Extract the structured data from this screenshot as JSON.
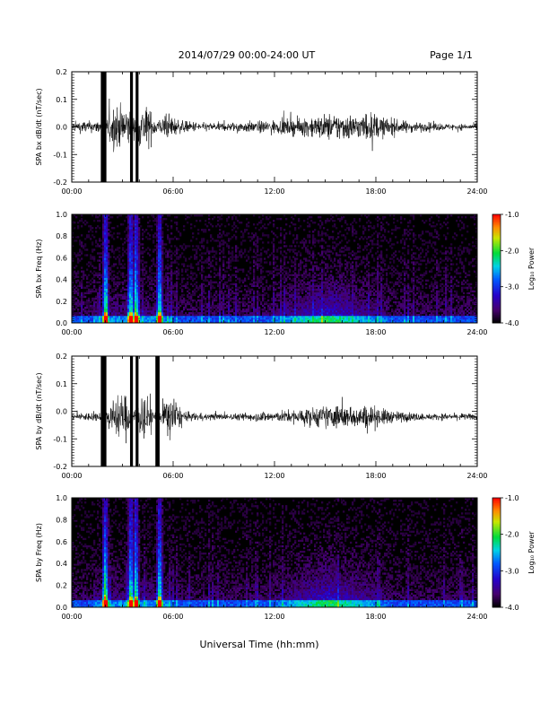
{
  "header": {
    "title": "2014/07/29  00:00-24:00 UT",
    "page": "Page 1/1"
  },
  "xlabel": "Universal Time (hh:mm)",
  "colorbar": {
    "label": "Log₁₀ Power",
    "ticks": [
      "-1.0",
      "-2.0",
      "-3.0",
      "-4.0"
    ],
    "range": [
      -4.0,
      -1.0
    ]
  },
  "chart_data": [
    {
      "type": "line",
      "ylabel": "SPA bx dB/dt (nT/sec)",
      "ylim": [
        -0.2,
        0.2
      ],
      "yticks": [
        "0.2",
        "0.1",
        "0.0",
        "-0.1",
        "-0.2"
      ],
      "xticks": [
        "00:00",
        "06:00",
        "12:00",
        "18:00",
        "24:00"
      ],
      "xlim_hours": [
        0,
        24
      ],
      "series": [
        {
          "values": [
            0.04,
            0.05,
            0.06,
            0.05,
            0.06,
            0.06,
            0.2,
            0.2,
            0.2,
            0.08,
            0.2,
            0.2,
            0.09,
            0.08,
            0.12,
            0.08,
            0.06,
            0.05,
            0.05,
            0.04,
            0.04,
            0.04,
            0.04,
            0.04,
            0.05,
            0.05,
            0.05,
            0.05,
            0.06,
            0.06,
            0.06,
            0.07,
            0.07,
            0.08,
            0.09,
            0.1,
            0.11,
            0.12,
            0.12,
            0.13,
            0.12,
            0.11,
            0.12,
            0.13,
            0.12,
            0.1,
            0.08,
            0.07,
            0.06,
            0.05,
            0.05,
            0.04,
            0.04,
            0.04,
            0.03,
            0.03,
            0.03,
            0.03,
            0.03,
            0.03
          ]
        }
      ]
    },
    {
      "type": "heatmap",
      "ylabel": "SPA bx Freq (Hz)",
      "ylim": [
        0.0,
        1.0
      ],
      "yticks": [
        "1.0",
        "0.8",
        "0.6",
        "0.4",
        "0.2",
        "0.0"
      ],
      "xticks": [
        "00:00",
        "06:00",
        "12:00",
        "18:00",
        "24:00"
      ],
      "xlim_hours": [
        0,
        24
      ],
      "zlim": [
        -4.0,
        -1.0
      ],
      "broadband_bursts_hours": [
        2.0,
        3.5,
        3.8,
        5.2
      ],
      "activity_window_hours": [
        11.5,
        19.0
      ]
    },
    {
      "type": "line",
      "ylabel": "SPA by dB/dt (nT/sec)",
      "ylim": [
        -0.2,
        0.2
      ],
      "yticks": [
        "0.2",
        "0.1",
        "0.0",
        "-0.1",
        "-0.2"
      ],
      "xticks": [
        "00:00",
        "06:00",
        "12:00",
        "18:00",
        "24:00"
      ],
      "xlim_hours": [
        0,
        24
      ],
      "series": [
        {
          "values": [
            0.03,
            0.03,
            0.04,
            0.04,
            0.04,
            0.04,
            0.2,
            0.2,
            0.2,
            0.06,
            0.2,
            0.2,
            0.07,
            0.06,
            0.2,
            0.2,
            0.05,
            0.04,
            0.04,
            0.03,
            0.03,
            0.03,
            0.03,
            0.03,
            0.03,
            0.04,
            0.04,
            0.04,
            0.05,
            0.05,
            0.05,
            0.06,
            0.06,
            0.07,
            0.08,
            0.09,
            0.1,
            0.1,
            0.11,
            0.11,
            0.1,
            0.1,
            0.1,
            0.11,
            0.1,
            0.08,
            0.07,
            0.05,
            0.05,
            0.04,
            0.04,
            0.03,
            0.03,
            0.03,
            0.03,
            0.03,
            0.03,
            0.03,
            0.03,
            0.03
          ]
        }
      ]
    },
    {
      "type": "heatmap",
      "ylabel": "SPA by Freq (Hz)",
      "ylim": [
        0.0,
        1.0
      ],
      "yticks": [
        "1.0",
        "0.8",
        "0.6",
        "0.4",
        "0.2",
        "0.0"
      ],
      "xticks": [
        "00:00",
        "06:00",
        "12:00",
        "18:00",
        "24:00"
      ],
      "xlim_hours": [
        0,
        24
      ],
      "zlim": [
        -4.0,
        -1.0
      ],
      "broadband_bursts_hours": [
        2.0,
        3.5,
        3.8,
        5.2
      ],
      "activity_window_hours": [
        11.5,
        19.0
      ]
    }
  ]
}
